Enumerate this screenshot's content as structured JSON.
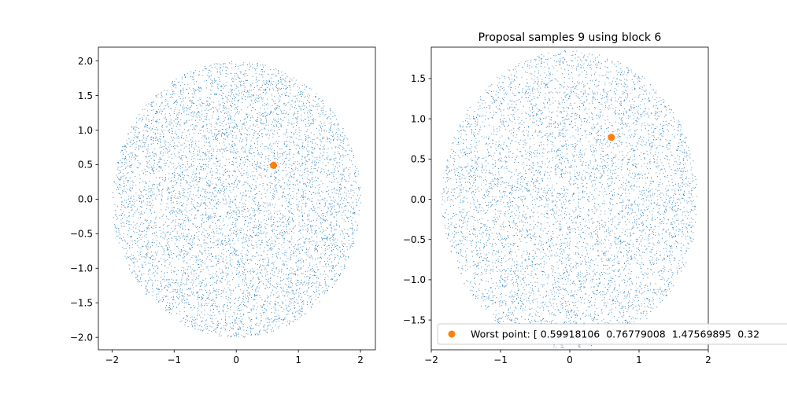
{
  "chart_data": [
    {
      "type": "scatter",
      "title": "",
      "xlabel": "",
      "ylabel": "",
      "xlim": [
        -2.22,
        2.24
      ],
      "ylim": [
        -2.18,
        2.2
      ],
      "xticks": [
        -2,
        -1,
        0,
        1,
        2
      ],
      "yticks": [
        -2.0,
        -1.5,
        -1.0,
        -0.5,
        0.0,
        0.5,
        1.0,
        1.5,
        2.0
      ],
      "xtick_labels": [
        "−2",
        "−1",
        "0",
        "1",
        "2"
      ],
      "ytick_labels": [
        "−2.0",
        "−1.5",
        "−1.0",
        "−0.5",
        "0.0",
        "0.5",
        "1.0",
        "1.5",
        "2.0"
      ],
      "grid": false,
      "samples": {
        "count": 6500,
        "distribution": "uniform disk",
        "center": [
          0,
          0
        ],
        "radius": 2.0,
        "color": "#1f77b4"
      },
      "highlight_point": {
        "x": 0.6,
        "y": 0.49,
        "color": "#ff7f0e"
      }
    },
    {
      "type": "scatter",
      "title": "Proposal samples 9 using block 6",
      "xlabel": "",
      "ylabel": "",
      "xlim": [
        -2.0,
        2.0
      ],
      "ylim": [
        -1.87,
        1.89
      ],
      "xticks": [
        -2,
        -1,
        0,
        1,
        2
      ],
      "yticks": [
        -1.5,
        -1.0,
        -0.5,
        0.0,
        0.5,
        1.0,
        1.5
      ],
      "xtick_labels": [
        "−2",
        "−1",
        "0",
        "1",
        "2"
      ],
      "ytick_labels": [
        "−1.5",
        "−1.0",
        "−0.5",
        "0.0",
        "0.5",
        "1.0",
        "1.5"
      ],
      "grid": false,
      "samples": {
        "count": 6000,
        "distribution": "uniform disk",
        "center": [
          0,
          0
        ],
        "radius": 1.85,
        "color": "#1f77b4"
      },
      "highlight_point": {
        "x": 0.6,
        "y": 0.77,
        "color": "#ff7f0e"
      },
      "legend": {
        "placement": "lower-left",
        "label": "Worst point: [ 0.59918106  0.76779008  1.47569895  0.32"
      }
    }
  ]
}
